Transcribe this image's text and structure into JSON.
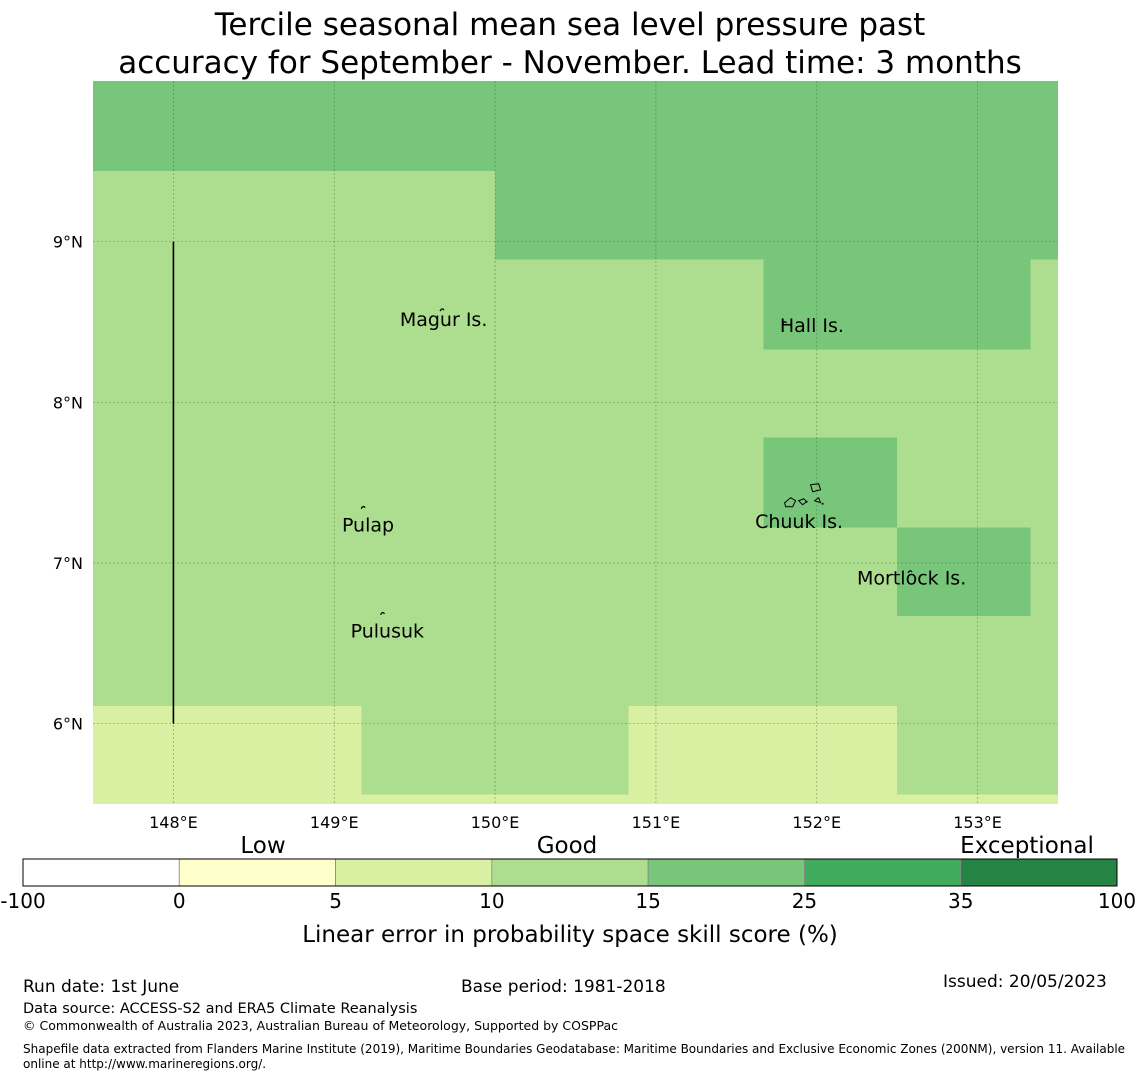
{
  "title": {
    "line1": "Tercile seasonal mean sea level pressure past",
    "line2": "accuracy for September - November. Lead time: 3 months"
  },
  "map": {
    "lon_range": [
      147.5,
      153.5
    ],
    "lat_range": [
      5.5,
      10.0
    ],
    "lon_ticks": [
      148,
      149,
      150,
      151,
      152,
      153
    ],
    "lon_tick_labels": [
      "148°E",
      "149°E",
      "150°E",
      "151°E",
      "152°E",
      "153°E"
    ],
    "lat_ticks": [
      6,
      7,
      8,
      9
    ],
    "lat_tick_labels": [
      "6°N",
      "7°N",
      "8°N",
      "9°N"
    ],
    "gridlines": true,
    "cell_category_legend": {
      "2": "5 to 10 (pale green)",
      "3": "10 to 15 (light green)",
      "4": "15 to 25 (green)"
    },
    "grid_cells": [
      {
        "lon": [
          147.5,
          150.0
        ],
        "lat": [
          9.44,
          10.0
        ],
        "category": 4
      },
      {
        "lon": [
          150.0,
          153.5
        ],
        "lat": [
          8.89,
          10.0
        ],
        "category": 4
      },
      {
        "lon": [
          151.67,
          153.33
        ],
        "lat": [
          8.33,
          8.89
        ],
        "category": 4
      },
      {
        "lon": [
          147.5,
          150.0
        ],
        "lat": [
          6.11,
          9.44
        ],
        "category": 3
      },
      {
        "lon": [
          150.0,
          151.67
        ],
        "lat": [
          6.11,
          8.89
        ],
        "category": 3
      },
      {
        "lon": [
          151.67,
          152.5
        ],
        "lat": [
          6.11,
          8.33
        ],
        "category": 3
      },
      {
        "lon": [
          152.5,
          153.33
        ],
        "lat": [
          6.11,
          8.33
        ],
        "category": 3
      },
      {
        "lon": [
          153.33,
          153.5
        ],
        "lat": [
          5.56,
          8.89
        ],
        "category": 3
      },
      {
        "lon": [
          149.17,
          150.83
        ],
        "lat": [
          5.56,
          6.11
        ],
        "category": 3
      },
      {
        "lon": [
          152.5,
          153.33
        ],
        "lat": [
          5.56,
          6.11
        ],
        "category": 3
      },
      {
        "lon": [
          151.67,
          152.5
        ],
        "lat": [
          7.22,
          7.78
        ],
        "category": 4
      },
      {
        "lon": [
          152.5,
          153.33
        ],
        "lat": [
          6.67,
          7.22
        ],
        "category": 4
      },
      {
        "lon": [
          147.5,
          149.17
        ],
        "lat": [
          5.5,
          6.11
        ],
        "category": 2
      },
      {
        "lon": [
          150.83,
          152.5
        ],
        "lat": [
          5.5,
          6.11
        ],
        "category": 2
      },
      {
        "lon": [
          149.17,
          150.83
        ],
        "lat": [
          5.5,
          5.56
        ],
        "category": 2
      },
      {
        "lon": [
          152.5,
          153.5
        ],
        "lat": [
          5.5,
          5.56
        ],
        "category": 2
      }
    ],
    "boundary_line": {
      "lon": 148.0,
      "lat": [
        6.0,
        9.0
      ]
    },
    "islands": [
      {
        "name": "Magur Is.",
        "label_lon": 149.68,
        "label_lat": 8.52,
        "lon": 149.67,
        "lat": 8.58
      },
      {
        "name": "Hall Is.",
        "label_lon": 151.97,
        "label_lat": 8.48,
        "lon": 151.8,
        "lat": 8.5
      },
      {
        "name": "Pulap",
        "label_lon": 149.21,
        "label_lat": 7.24,
        "lon": 149.18,
        "lat": 7.35
      },
      {
        "name": "Chuuk Is.",
        "label_lon": 151.89,
        "label_lat": 7.26,
        "lon": 151.85,
        "lat": 7.4
      },
      {
        "name": "Mortlock Is.",
        "label_lon": 152.59,
        "label_lat": 6.91,
        "lon": 152.58,
        "lat": 6.95
      },
      {
        "name": "Pulusuk",
        "label_lon": 149.33,
        "label_lat": 6.58,
        "lon": 149.3,
        "lat": 6.69
      }
    ]
  },
  "colorbar": {
    "category_labels": [
      "Low",
      "Good",
      "Exceptional"
    ],
    "boundaries": [
      "-100",
      "0",
      "5",
      "10",
      "15",
      "25",
      "35",
      "100"
    ],
    "colors": [
      "#ffffff",
      "#ffffcc",
      "#d9f0a3",
      "#addd8e",
      "#78c679",
      "#41ab5d",
      "#238443"
    ],
    "label": "Linear error in probability space skill score (%)"
  },
  "footer": {
    "run_date": "Run date: 1st June",
    "base_period": "Base period: 1981-2018",
    "issued": "Issued: 20/05/2023",
    "data_source": "Data source: ACCESS-S2 and ERA5 Climate Reanalysis",
    "copyright": "© Commonwealth of Australia 2023, Australian Bureau of Meteorology, Supported by COSPPac",
    "shapefile_line1": "Shapefile data extracted from Flanders Marine Institute (2019), Maritime Boundaries Geodatabase: Maritime Boundaries and Exclusive Economic Zones (200NM), version 11. Available",
    "shapefile_line2": "online at http://www.marineregions.org/."
  }
}
